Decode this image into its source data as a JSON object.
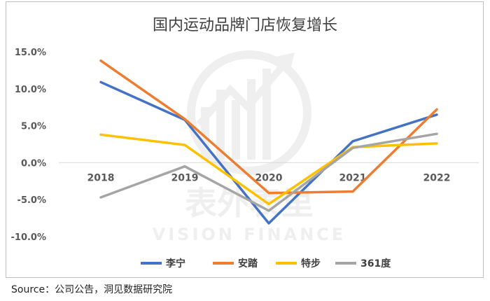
{
  "chart_data": {
    "type": "line",
    "title": "国内运动品牌门店恢复增长",
    "xlabel": "",
    "ylabel": "",
    "categories": [
      "2018",
      "2019",
      "2020",
      "2021",
      "2022"
    ],
    "ylim": [
      -10,
      15
    ],
    "yticks": [
      -10,
      -5,
      0,
      5,
      10,
      15
    ],
    "ytick_labels": [
      "-10.0%",
      "-5.0%",
      "0.0%",
      "5.0%",
      "10.0%",
      "15.0%"
    ],
    "grid": false,
    "legend_position": "bottom",
    "series": [
      {
        "name": "李宁",
        "color": "#4472C4",
        "values": [
          10.9,
          5.8,
          -8.2,
          2.9,
          6.5
        ]
      },
      {
        "name": "安踏",
        "color": "#ED7D31",
        "values": [
          13.8,
          5.9,
          -4.1,
          -3.9,
          7.2
        ]
      },
      {
        "name": "特步",
        "color": "#FFC000",
        "values": [
          3.8,
          2.4,
          -5.6,
          2.1,
          2.6
        ]
      },
      {
        "name": "361度",
        "color": "#A5A5A5",
        "values": [
          -4.7,
          -0.5,
          -6.5,
          2.0,
          3.9
        ]
      }
    ]
  },
  "watermark": {
    "cn": "表外表里",
    "en": "VISION FINANCE"
  },
  "source_text": "Source：公司公告，洞见数据研究院"
}
